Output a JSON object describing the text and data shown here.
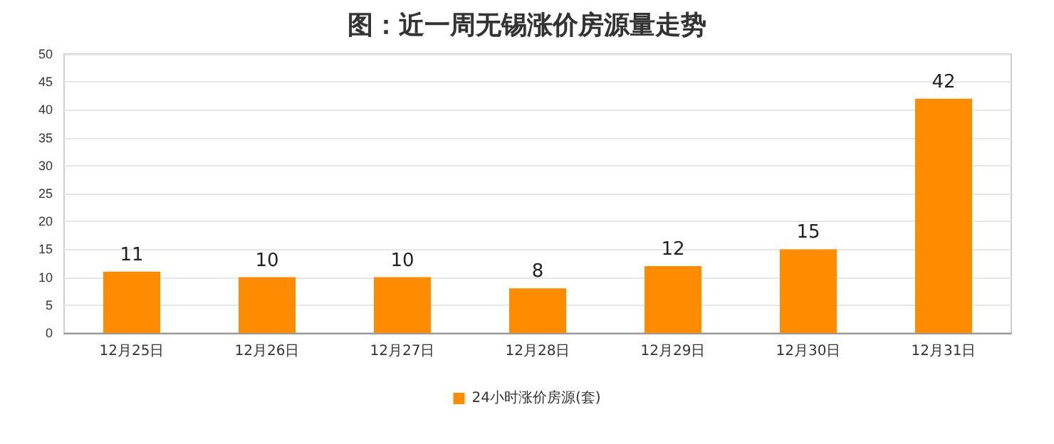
{
  "chart_data": {
    "type": "bar",
    "title": "图：近一周无锡涨价房源量走势",
    "categories": [
      "12月25日",
      "12月26日",
      "12月27日",
      "12月28日",
      "12月29日",
      "12月30日",
      "12月31日"
    ],
    "series": [
      {
        "name": "24小时涨价房源(套)",
        "color": "#ff8c00",
        "values": [
          11,
          10,
          10,
          8,
          12,
          15,
          42
        ]
      }
    ],
    "ylim": [
      0,
      50
    ],
    "yticks": [
      0,
      5,
      10,
      15,
      20,
      25,
      30,
      35,
      40,
      45,
      50
    ],
    "grid": "y",
    "legend": "bottom",
    "data_labels": true
  }
}
